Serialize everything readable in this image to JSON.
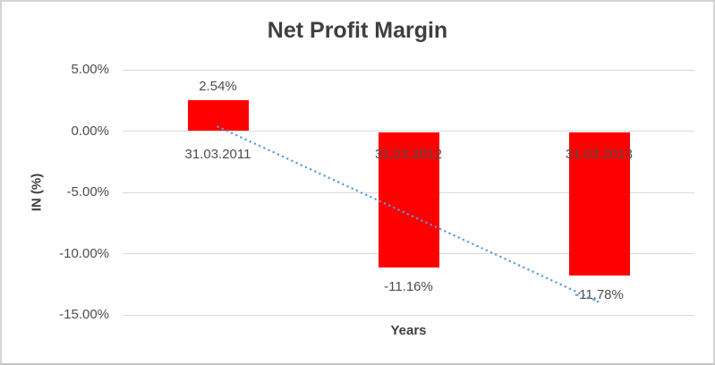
{
  "chart_data": {
    "type": "bar",
    "title": "Net Profit Margin",
    "xlabel": "Years",
    "ylabel": "IN (%)",
    "categories": [
      "31.03.2011",
      "31.03.2012",
      "31.03.2013"
    ],
    "values": [
      2.54,
      -11.16,
      -11.78
    ],
    "data_labels": [
      "2.54%",
      "-11.16%",
      "-11,78%"
    ],
    "ylim": [
      -15,
      5
    ],
    "yticks": [
      5,
      0,
      -5,
      -10,
      -15
    ],
    "ytick_labels": [
      "5.00%",
      "0.00%",
      "-5.00%",
      "-10.00%",
      "-15.00%"
    ],
    "grid": true,
    "legend": "none",
    "bar_color": "#ff0000",
    "gridline_color": "#d9d9d9",
    "text_color": "#4d4d4d",
    "title_color": "#3f3f3f",
    "trendline": {
      "type": "linear",
      "style": "dotted",
      "color": "#5b9bd5"
    }
  }
}
